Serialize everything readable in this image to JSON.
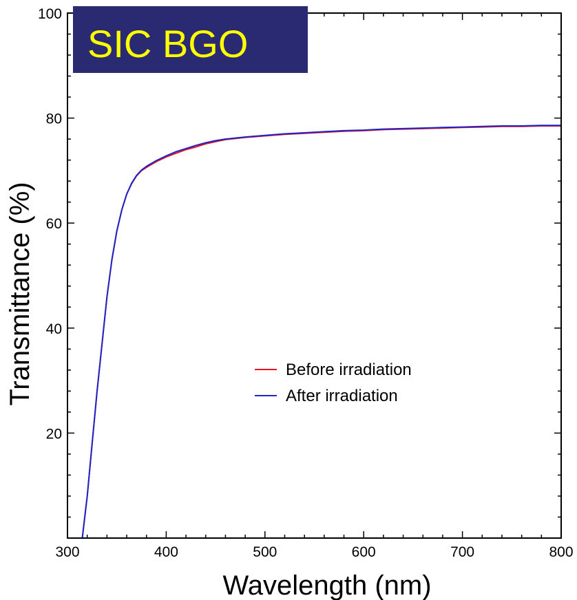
{
  "chart_data": {
    "type": "line",
    "title": "SIC BGO",
    "title_box_color": "#2a2a72",
    "title_text_color": "#ffff00",
    "xlabel": "Wavelength (nm)",
    "ylabel": "Transmittance (%)",
    "xlim": [
      300,
      800
    ],
    "ylim": [
      0,
      100
    ],
    "xticks": [
      300,
      400,
      500,
      600,
      700,
      800
    ],
    "yticks": [
      20,
      40,
      60,
      80,
      100
    ],
    "grid": false,
    "legend_position": "center-right",
    "series": [
      {
        "name": "Before irradiation",
        "color": "#e8131f",
        "x": [
          315,
          320,
          325,
          330,
          335,
          340,
          345,
          350,
          355,
          360,
          365,
          370,
          375,
          380,
          390,
          400,
          410,
          420,
          430,
          440,
          450,
          460,
          480,
          500,
          520,
          540,
          560,
          580,
          600,
          620,
          640,
          660,
          680,
          700,
          720,
          740,
          760,
          780,
          800
        ],
        "y": [
          0,
          8,
          18,
          28,
          37,
          46,
          53,
          58.5,
          62.5,
          65.5,
          67.5,
          69,
          70,
          70.6,
          71.7,
          72.6,
          73.3,
          74,
          74.5,
          75.1,
          75.5,
          75.9,
          76.3,
          76.6,
          76.9,
          77.1,
          77.3,
          77.5,
          77.6,
          77.8,
          77.9,
          78.0,
          78.1,
          78.2,
          78.3,
          78.4,
          78.4,
          78.5,
          78.5
        ]
      },
      {
        "name": "After irradiation",
        "color": "#1f24c8",
        "x": [
          315,
          320,
          325,
          330,
          335,
          340,
          345,
          350,
          355,
          360,
          365,
          370,
          375,
          380,
          390,
          400,
          410,
          420,
          430,
          440,
          450,
          460,
          480,
          500,
          520,
          540,
          560,
          580,
          600,
          620,
          640,
          660,
          680,
          700,
          720,
          740,
          760,
          780,
          800
        ],
        "y": [
          0,
          8,
          18,
          28,
          37,
          46,
          53,
          58.5,
          62.5,
          65.5,
          67.6,
          69.1,
          70.1,
          70.8,
          71.9,
          72.8,
          73.6,
          74.2,
          74.8,
          75.3,
          75.7,
          76.0,
          76.4,
          76.7,
          77.0,
          77.2,
          77.4,
          77.6,
          77.7,
          77.9,
          78.0,
          78.1,
          78.2,
          78.3,
          78.4,
          78.5,
          78.5,
          78.6,
          78.6
        ]
      }
    ]
  }
}
